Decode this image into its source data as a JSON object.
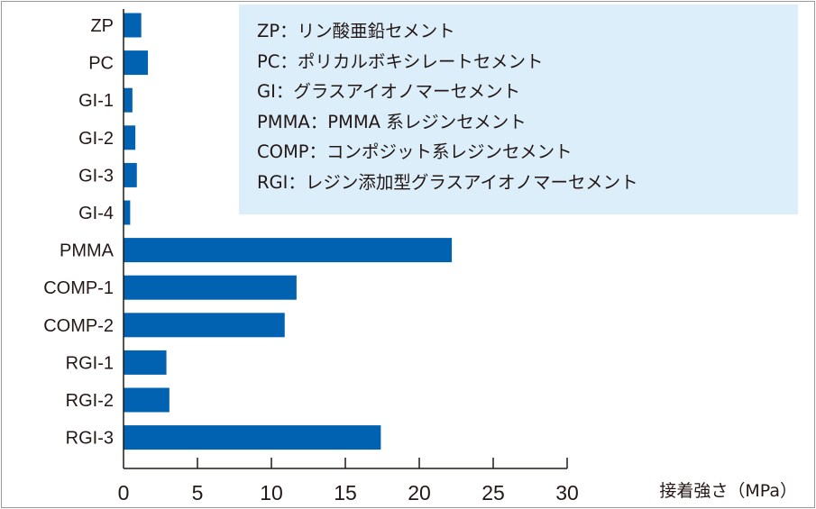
{
  "chart_data": {
    "type": "bar",
    "orientation": "horizontal",
    "categories": [
      "ZP",
      "PC",
      "GI-1",
      "GI-2",
      "GI-3",
      "GI-4",
      "PMMA",
      "COMP-1",
      "COMP-2",
      "RGI-1",
      "RGI-2",
      "RGI-3"
    ],
    "values": [
      1.2,
      1.65,
      0.6,
      0.8,
      0.9,
      0.45,
      22.2,
      11.7,
      10.9,
      2.9,
      3.1,
      17.4
    ],
    "xlabel": "接着強さ（MPa）",
    "xlim": [
      0,
      30
    ],
    "xticks": [
      "0",
      "5",
      "10",
      "15",
      "20",
      "25",
      "30"
    ],
    "grid": false,
    "bar_color": "#0062b1",
    "legend_placement": "top-right",
    "legend": [
      "ZP：リン酸亜鉛セメント",
      "PC：ポリカルボキシレートセメント",
      "GI：グラスアイオノマーセメント",
      "PMMA：PMMA 系レジンセメント",
      "COMP：コンポジット系レジンセメント",
      "RGI：レジン添加型グラスアイオノマーセメント"
    ]
  }
}
